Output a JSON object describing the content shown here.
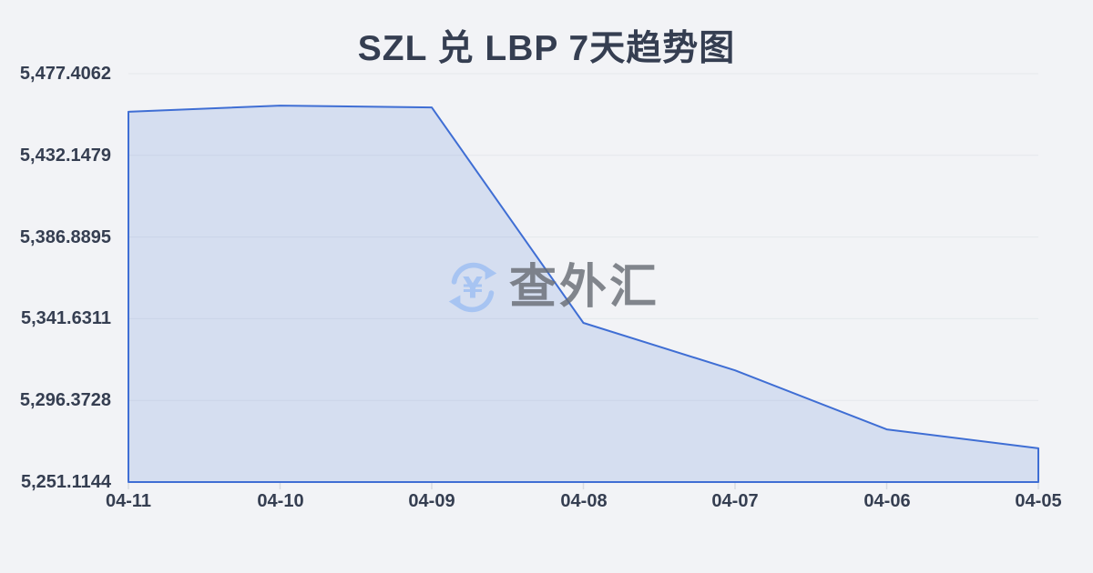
{
  "title": "SZL 兑 LBP 7天趋势图",
  "watermark": {
    "text": "查外汇",
    "symbol": "¥",
    "icon_name": "currency-exchange-icon"
  },
  "colors": {
    "background": "#f2f3f6",
    "line": "#3f6ed4",
    "area_fill": "rgba(63,110,212,0.16)",
    "grid": "#e5e8ec",
    "tick": "#d8dbe1",
    "text": "#353e51",
    "watermark_icon": "#a7c4f2",
    "watermark_text": "rgba(104,108,116,0.82)"
  },
  "chart_data": {
    "type": "area",
    "title": "SZL 兑 LBP 7天趋势图",
    "x": [
      "04-11",
      "04-10",
      "04-09",
      "04-08",
      "04-07",
      "04-06",
      "04-05"
    ],
    "values": [
      5456.3,
      5459.7,
      5458.7,
      5339.3,
      5313.0,
      5280.3,
      5269.8
    ],
    "xlabel": "",
    "ylabel": "",
    "ylim": [
      5251.1144,
      5477.4062
    ],
    "yticks": [
      5477.4062,
      5432.1479,
      5386.8895,
      5341.6311,
      5296.3728,
      5251.1144
    ],
    "ytick_labels": [
      "5,477.4062",
      "5,432.1479",
      "5,386.8895",
      "5,341.6311",
      "5,296.3728",
      "5,251.1144"
    ],
    "grid": true,
    "legend": false
  }
}
